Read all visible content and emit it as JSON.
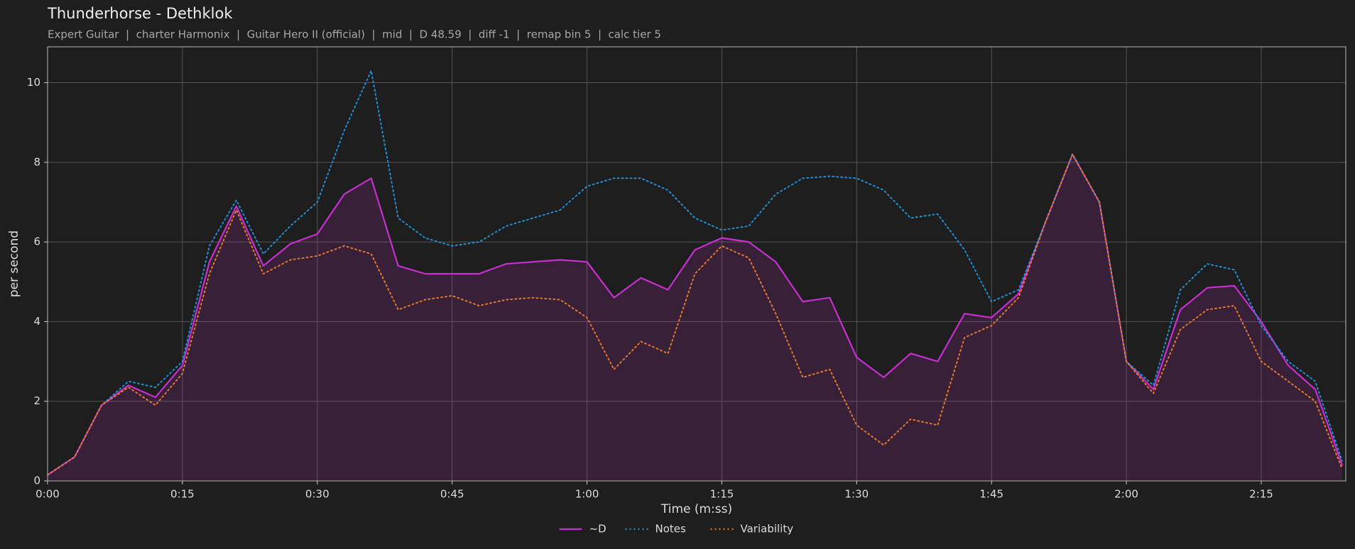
{
  "chart_data": {
    "type": "line",
    "title": "Thunderhorse - Dethklok",
    "subtitle": "Expert Guitar  |  charter Harmonix  |  Guitar Hero II (official)  |  mid  |  D 48.59  |  diff -1  |  remap bin 5  |  calc tier 5",
    "x_label": "Time (m:ss)",
    "y_label": "per second",
    "x": [
      0,
      3,
      6,
      9,
      12,
      15,
      18,
      21,
      24,
      27,
      30,
      33,
      36,
      39,
      42,
      45,
      48,
      51,
      54,
      57,
      60,
      63,
      66,
      69,
      72,
      75,
      78,
      81,
      84,
      87,
      90,
      93,
      96,
      99,
      102,
      105,
      108,
      111,
      114,
      117,
      120,
      123,
      126,
      129,
      132,
      135,
      138,
      141,
      144
    ],
    "series": [
      {
        "name": "~D",
        "color": "#c72fcf",
        "style": "solid",
        "area": true,
        "values": [
          0.15,
          0.6,
          1.9,
          2.4,
          2.1,
          2.9,
          5.5,
          6.9,
          5.4,
          5.95,
          6.2,
          7.2,
          7.6,
          5.4,
          5.2,
          5.2,
          5.2,
          5.45,
          5.5,
          5.55,
          5.5,
          4.6,
          5.1,
          4.8,
          5.8,
          6.1,
          6.0,
          5.5,
          4.5,
          4.6,
          3.1,
          2.6,
          3.2,
          3.0,
          4.2,
          4.1,
          4.7,
          6.5,
          8.2,
          7.0,
          3.0,
          2.3,
          4.3,
          4.85,
          4.9,
          4.0,
          2.9,
          2.3,
          0.4
        ]
      },
      {
        "name": "Notes",
        "color": "#1f8fd6",
        "style": "dotted",
        "area": false,
        "values": [
          0.15,
          0.6,
          1.9,
          2.5,
          2.35,
          3.0,
          5.9,
          7.05,
          5.7,
          6.4,
          7.0,
          8.8,
          10.3,
          6.6,
          6.1,
          5.9,
          6.0,
          6.4,
          6.6,
          6.8,
          7.4,
          7.6,
          7.6,
          7.3,
          6.6,
          6.3,
          6.4,
          7.2,
          7.6,
          7.65,
          7.6,
          7.3,
          6.6,
          6.7,
          5.8,
          4.5,
          4.8,
          6.5,
          8.2,
          7.0,
          3.0,
          2.4,
          4.8,
          5.45,
          5.3,
          3.9,
          3.0,
          2.5,
          0.5
        ]
      },
      {
        "name": "Variability",
        "color": "#e5792a",
        "style": "dotted",
        "area": false,
        "values": [
          0.15,
          0.6,
          1.9,
          2.35,
          1.9,
          2.7,
          5.2,
          6.8,
          5.2,
          5.55,
          5.65,
          5.9,
          5.7,
          4.3,
          4.55,
          4.65,
          4.4,
          4.55,
          4.6,
          4.55,
          4.1,
          2.8,
          3.5,
          3.2,
          5.2,
          5.9,
          5.6,
          4.2,
          2.6,
          2.8,
          1.4,
          0.9,
          1.55,
          1.4,
          3.6,
          3.9,
          4.6,
          6.5,
          8.2,
          7.0,
          3.0,
          2.2,
          3.8,
          4.3,
          4.4,
          3.0,
          2.5,
          2.0,
          0.3
        ]
      }
    ],
    "xlim": [
      0,
      144.4
    ],
    "ylim": [
      0,
      10.9
    ],
    "xticks": [
      {
        "value": 0,
        "label": "0:00"
      },
      {
        "value": 15,
        "label": "0:15"
      },
      {
        "value": 30,
        "label": "0:30"
      },
      {
        "value": 45,
        "label": "0:45"
      },
      {
        "value": 60,
        "label": "1:00"
      },
      {
        "value": 75,
        "label": "1:15"
      },
      {
        "value": 90,
        "label": "1:30"
      },
      {
        "value": 105,
        "label": "1:45"
      },
      {
        "value": 120,
        "label": "2:00"
      },
      {
        "value": 135,
        "label": "2:15"
      }
    ],
    "yticks": [
      0,
      2,
      4,
      6,
      8,
      10
    ],
    "grid": true,
    "legend": "bottom"
  }
}
